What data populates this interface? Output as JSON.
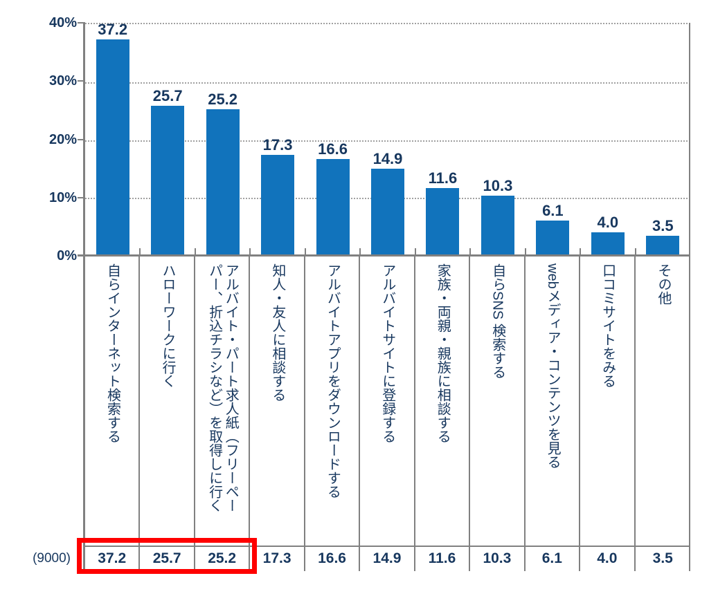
{
  "colors": {
    "bar": "#1173bc",
    "text": "#17375e",
    "axis": "#808080",
    "grid": "#a0a0a0",
    "highlight": "#ff0000"
  },
  "chart_data": {
    "type": "bar",
    "title": "",
    "xlabel": "",
    "ylabel": "",
    "unit": "%",
    "ylim": [
      0,
      40
    ],
    "yticks": [
      "40%",
      "30%",
      "20%",
      "10%",
      "0%"
    ],
    "grid": "horizontal-dotted",
    "legend": "none",
    "categories": [
      "自らインターネット検索する",
      "ハローワークに行く",
      "アルバイト・パート求人紙（フリーペーパー、折込チラシなど）を取得しに行く",
      "知人・友人に相談する",
      "アルバイトアプリをダウンロードする",
      "アルバイトサイトに登録する",
      "家族・両親・親族に相談する",
      "自らSNS 検索する",
      "webメディア・コンテンツを見る",
      "口コミサイトをみる",
      "その他"
    ],
    "values": [
      37.2,
      25.7,
      25.2,
      17.3,
      16.6,
      14.9,
      11.6,
      10.3,
      6.1,
      4.0,
      3.5
    ],
    "bar_value_labels": [
      "37.2",
      "25.7",
      "25.2",
      "17.3",
      "16.6",
      "14.9",
      "11.6",
      "10.3",
      "6.1",
      "4.0",
      "3.5"
    ],
    "table": {
      "row_header": "(9000)",
      "row_values": [
        "37.2",
        "25.7",
        "25.2",
        "17.3",
        "16.6",
        "14.9",
        "11.6",
        "10.3",
        "6.1",
        "4.0",
        "3.5"
      ],
      "highlighted_cell_indices": [
        0,
        1,
        2
      ]
    }
  }
}
